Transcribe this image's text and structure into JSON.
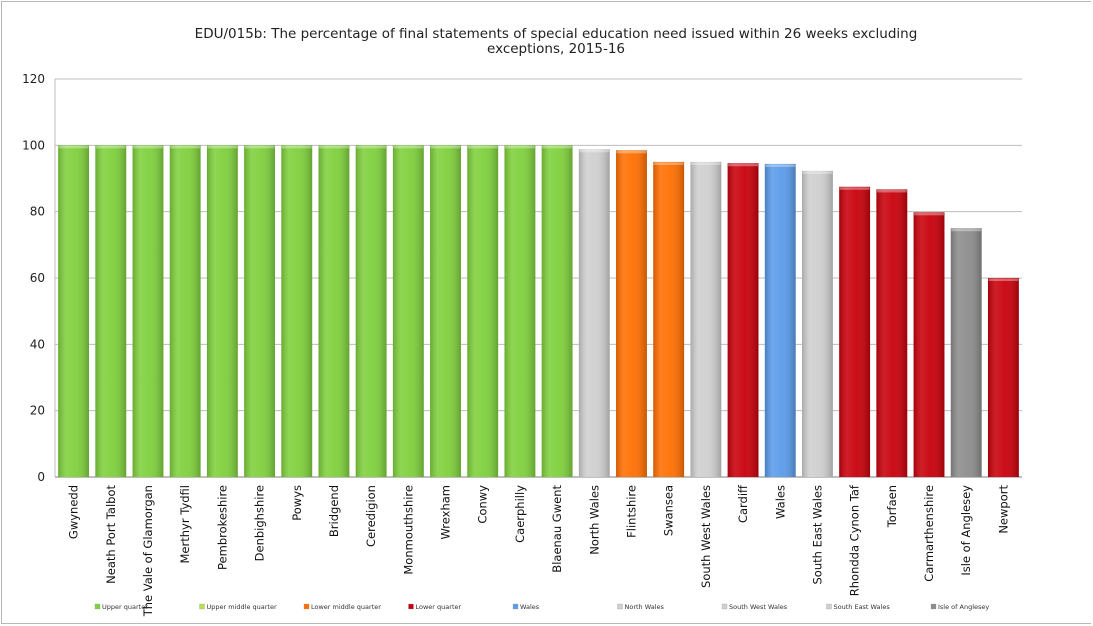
{
  "chart_data": {
    "type": "bar",
    "title": "EDU/015b: The percentage of final statements of special education need issued within 26 weeks excluding exceptions, 2015-16",
    "title_lines": [
      "EDU/015b: The percentage of final statements of special education need issued within 26 weeks excluding",
      "exceptions, 2015-16"
    ],
    "xlabel": "",
    "ylabel": "",
    "ylim": [
      0,
      120
    ],
    "yticks": [
      "0",
      "20",
      "40",
      "60",
      "80",
      "100",
      "120"
    ],
    "grid": true,
    "legend_position": "bottom",
    "categories": [
      "Gwynedd",
      "Neath Port Talbot",
      "The Vale of Glamorgan",
      "Merthyr Tydfil",
      "Pembrokeshire",
      "Denbighshire",
      "Powys",
      "Bridgend",
      "Ceredigion",
      "Monmouthshire",
      "Wrexham",
      "Conwy",
      "Caerphilly",
      "Blaenau Gwent",
      "North Wales",
      "Flintshire",
      "Swansea",
      "South West Wales",
      "Cardiff",
      "Wales",
      "South East Wales",
      "Rhondda Cynon Taf",
      "Torfaen",
      "Carmarthenshire",
      "Isle of Anglesey",
      "Newport"
    ],
    "values": [
      100,
      100,
      100,
      100,
      100,
      100,
      100,
      100,
      100,
      100,
      100,
      100,
      100,
      100,
      98.8,
      98.5,
      95,
      95,
      94.6,
      94.4,
      92.3,
      87.5,
      86.7,
      79.8,
      75,
      60
    ],
    "groups": [
      "Upper quarter",
      "Upper quarter",
      "Upper quarter",
      "Upper quarter",
      "Upper quarter",
      "Upper quarter",
      "Upper quarter",
      "Upper quarter",
      "Upper quarter",
      "Upper quarter",
      "Upper quarter",
      "Upper quarter",
      "Upper quarter",
      "Upper quarter",
      "North Wales",
      "Lower middle quarter",
      "Lower middle quarter",
      "South West Wales",
      "Lower quarter",
      "Wales",
      "South East Wales",
      "Lower quarter",
      "Lower quarter",
      "Lower quarter",
      "Isle of Anglesey",
      "Lower quarter"
    ],
    "legend": [
      {
        "name": "Upper quarter",
        "color": "#7fd03c"
      },
      {
        "name": "Upper middle quarter",
        "color": "#b8e04a"
      },
      {
        "name": "Lower middle quarter",
        "color": "#ff6f00"
      },
      {
        "name": "Lower quarter",
        "color": "#c8000b"
      },
      {
        "name": "Wales",
        "color": "#5a9bea"
      },
      {
        "name": "North Wales",
        "color": "#cfcfcf"
      },
      {
        "name": "South West Wales",
        "color": "#cfcfcf"
      },
      {
        "name": "South East Wales",
        "color": "#cfcfcf"
      },
      {
        "name": "Isle of Anglesey",
        "color": "#8c8c8c"
      }
    ]
  }
}
